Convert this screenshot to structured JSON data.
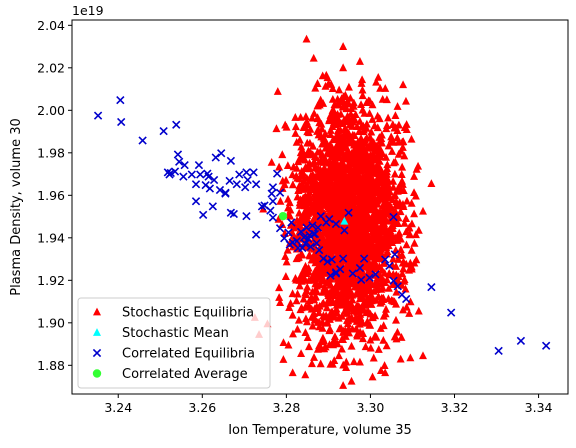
{
  "chart_data": {
    "type": "scatter",
    "xlabel": "Ion Temperature, volume 35",
    "ylabel": "Plasma Density, volume 30",
    "y_offset_label": "1e19",
    "xlim": [
      3.229,
      3.347
    ],
    "ylim": [
      1.8665,
      2.0425
    ],
    "x_ticks": [
      3.24,
      3.26,
      3.28,
      3.3,
      3.32,
      3.34
    ],
    "x_tick_labels": [
      "3.24",
      "3.26",
      "3.28",
      "3.30",
      "3.32",
      "3.34"
    ],
    "y_ticks": [
      1.88,
      1.9,
      1.92,
      1.94,
      1.96,
      1.98,
      2.0,
      2.02,
      2.04
    ],
    "y_tick_labels": [
      "1.88",
      "1.90",
      "1.92",
      "1.94",
      "1.96",
      "1.98",
      "2.00",
      "2.02",
      "2.04"
    ],
    "legend_position": "lower-left",
    "series": [
      {
        "name": "Stochastic Equilibria",
        "marker": "triangle",
        "color": "#ff0000",
        "cloud": {
          "center": [
            3.2945,
            1.9475
          ],
          "sd": [
            0.0065,
            0.0265
          ],
          "count": 2600,
          "seed": 7
        },
        "x": [
          3.2848,
          3.2935,
          3.2765,
          3.2865,
          3.2935,
          3.2975,
          3.2895,
          3.2785,
          3.2735,
          3.2745,
          3.3145,
          3.3125,
          3.3115,
          3.2725,
          3.2755,
          3.3115,
          3.3125,
          3.2955,
          3.2815,
          3.2845,
          3.3025,
          3.2905,
          3.2935,
          3.3035,
          3.2975,
          3.3005,
          3.2875,
          3.2925,
          3.2835,
          3.2805,
          3.3095
        ],
        "y": [
          2.0335,
          2.03,
          1.9755,
          2.0245,
          2.02,
          2.023,
          2.0165,
          1.9095,
          1.8945,
          1.9535,
          1.9655,
          1.9525,
          1.9435,
          1.9025,
          1.8995,
          1.9055,
          1.8845,
          1.8725,
          1.8765,
          1.8755,
          1.8775,
          1.8805,
          1.8705,
          1.8765,
          1.8815,
          1.8745,
          1.8875,
          1.8845,
          1.8855,
          1.8895,
          1.8835
        ]
      },
      {
        "name": "Stochastic Mean",
        "marker": "triangle",
        "color": "#00ffff",
        "x": [
          3.2938
        ],
        "y": [
          1.9478
        ]
      },
      {
        "name": "Correlated Equilibria",
        "marker": "x",
        "color": "#0000cc",
        "x": [
          3.2352,
          3.2405,
          3.2407,
          3.2458,
          3.2508,
          3.2522,
          3.2535,
          3.2545,
          3.2538,
          3.2542,
          3.2518,
          3.2525,
          3.2555,
          3.2558,
          3.2575,
          3.2585,
          3.2608,
          3.2612,
          3.2615,
          3.2628,
          3.2632,
          3.2645,
          3.2668,
          3.2688,
          3.2705,
          3.2708,
          3.2722,
          3.2592,
          3.2595,
          3.2585,
          3.2602,
          3.2618,
          3.2655,
          3.2675,
          3.2682,
          3.2705,
          3.2728,
          3.2742,
          3.2768,
          3.2785,
          3.2768,
          3.2778,
          3.2762,
          3.2748,
          3.2665,
          3.2642,
          3.2702,
          3.2668,
          3.2625,
          3.2655,
          3.2728,
          3.2765,
          3.2768,
          3.2785,
          3.2795,
          3.2805,
          3.2815,
          3.2828,
          3.2835,
          3.2842,
          3.2848,
          3.2855,
          3.2862,
          3.2868,
          3.2875,
          3.2882,
          3.2895,
          3.2902,
          3.2918,
          3.2938,
          3.2948,
          3.2845,
          3.2852,
          3.2858,
          3.2865,
          3.2872,
          3.2808,
          3.2812,
          3.2825,
          3.2838,
          3.2878,
          3.2888,
          3.2898,
          3.2905,
          3.2908,
          3.2918,
          3.2928,
          3.2935,
          3.2958,
          3.2975,
          3.2985,
          3.2998,
          3.3035,
          3.3045,
          3.3055,
          3.3065,
          3.3075,
          3.3085,
          3.3055,
          3.3145,
          3.3192,
          3.3305,
          3.3358,
          3.3418,
          3.2918,
          3.3012,
          3.3058,
          3.2978
        ],
        "y": [
          1.9975,
          2.0048,
          1.9945,
          1.9858,
          1.9902,
          1.9698,
          1.9712,
          1.9758,
          1.9932,
          1.9792,
          1.9708,
          1.9705,
          1.9688,
          1.9742,
          1.9698,
          1.9652,
          1.9648,
          1.9702,
          1.9688,
          1.9672,
          1.9778,
          1.9798,
          1.9762,
          1.9698,
          1.9708,
          1.9672,
          1.9708,
          1.9742,
          1.9698,
          1.9572,
          1.9508,
          1.9632,
          1.9608,
          1.9512,
          1.9652,
          1.9502,
          1.9415,
          1.9548,
          1.9638,
          1.9612,
          1.9572,
          1.9702,
          1.9528,
          1.9552,
          1.9668,
          1.9625,
          1.9638,
          1.9518,
          1.9548,
          1.9612,
          1.9652,
          1.9608,
          1.9495,
          1.9445,
          1.9398,
          1.9425,
          1.9378,
          1.9352,
          1.9428,
          1.9402,
          1.9448,
          1.9412,
          1.9458,
          1.9418,
          1.9448,
          1.9502,
          1.9472,
          1.9488,
          1.9465,
          1.9435,
          1.9518,
          1.9372,
          1.9395,
          1.9358,
          1.9418,
          1.9375,
          1.9368,
          1.9472,
          1.9385,
          1.9352,
          1.9342,
          1.9302,
          1.9288,
          1.9222,
          1.9298,
          1.9238,
          1.9252,
          1.9302,
          1.9232,
          1.9258,
          1.9302,
          1.9212,
          1.9298,
          1.9268,
          1.9198,
          1.9172,
          1.9132,
          1.9112,
          1.9498,
          1.9168,
          1.9048,
          1.8868,
          1.8915,
          1.8892,
          1.9232,
          1.9228,
          1.9322,
          1.9202
        ]
      },
      {
        "name": "Correlated Average",
        "marker": "circle",
        "color": "#33ff33",
        "x": [
          3.2792
        ],
        "y": [
          1.9502
        ]
      }
    ]
  }
}
